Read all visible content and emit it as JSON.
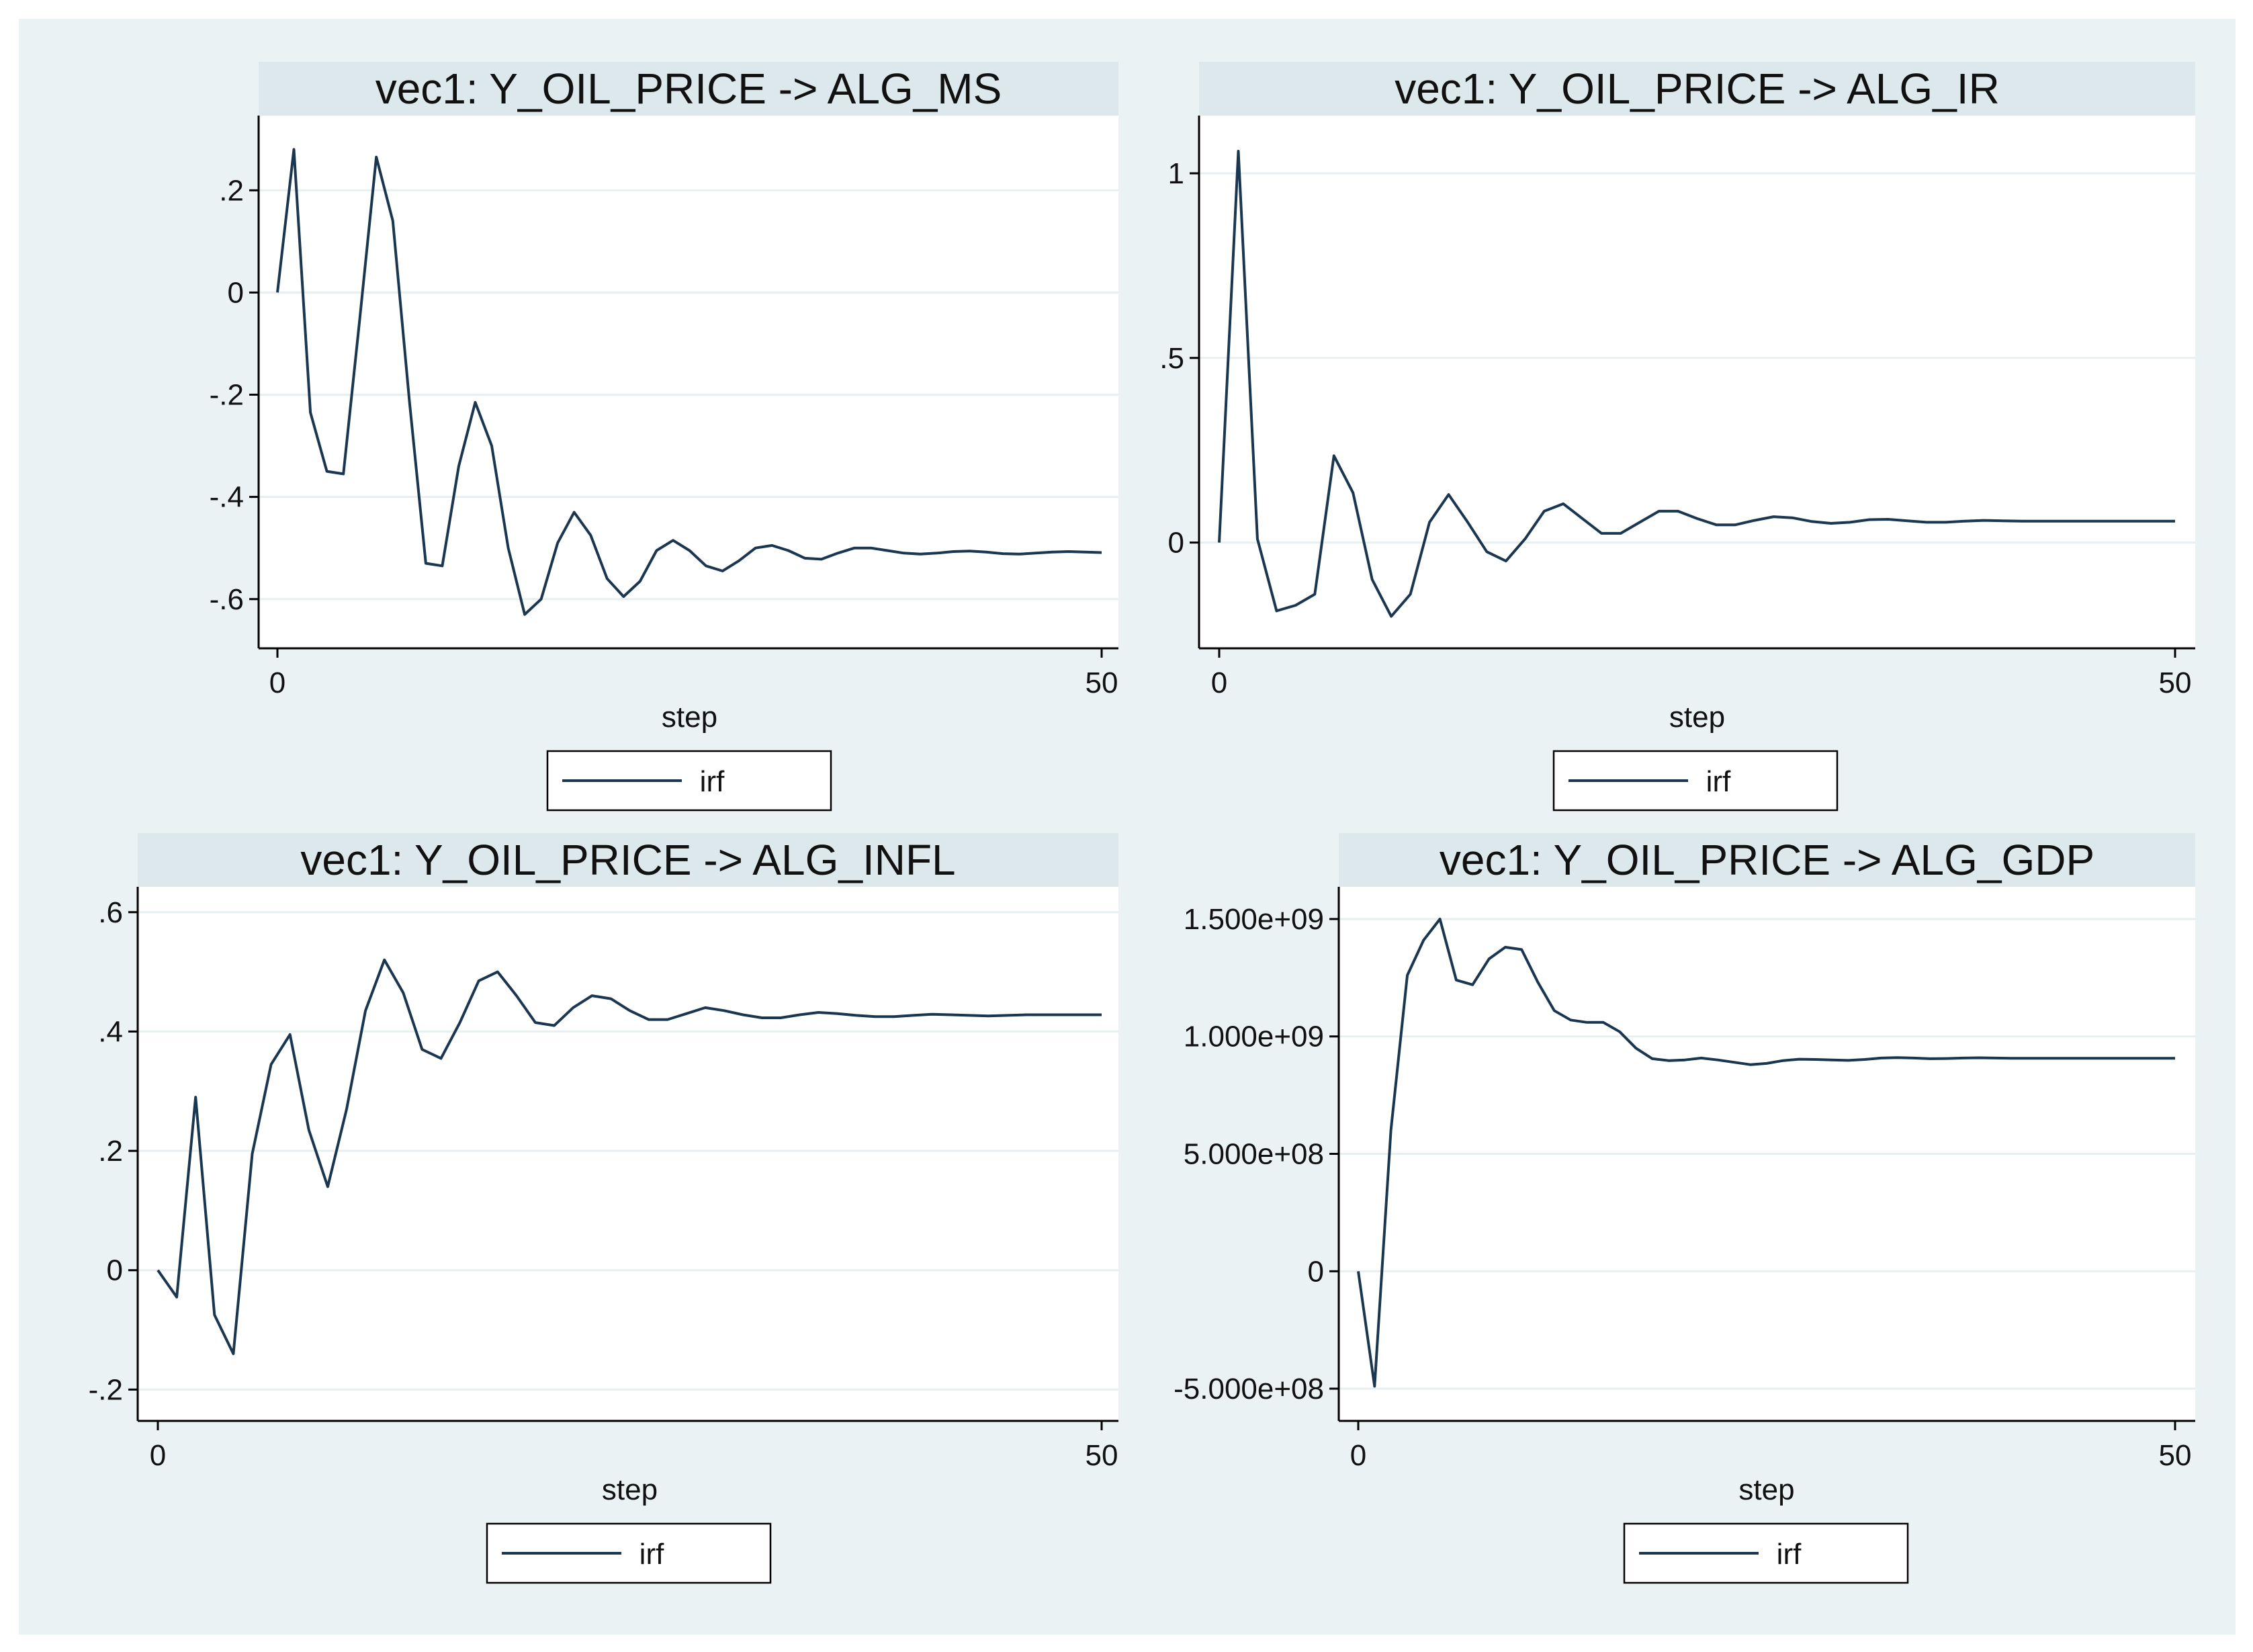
{
  "colors": {
    "outer_background": "#eaf2f3",
    "title_band": "#dde8ec",
    "plot_background": "#ffffff",
    "grid": "#e8eff1",
    "axis": "#000000",
    "line": "#1a3650"
  },
  "chart_data": [
    {
      "type": "line",
      "title": "vec1: Y_OIL_PRICE -> ALG_MS",
      "xlabel": "step",
      "ylabel": "",
      "xlim": [
        0,
        50
      ],
      "ylim": [
        -0.67,
        0.32
      ],
      "xticks": [
        0,
        50
      ],
      "xtick_labels": [
        "0",
        "50"
      ],
      "yticks": [
        0.2,
        0,
        -0.2,
        -0.4,
        -0.6
      ],
      "ytick_labels": [
        ".2",
        "0",
        "-.2",
        "-.4",
        "-.6"
      ],
      "grid": true,
      "legend": [
        "irf"
      ],
      "legend_position": "bottom",
      "series": [
        {
          "name": "irf",
          "x": [
            0,
            1,
            2,
            3,
            4,
            5,
            6,
            7,
            8,
            9,
            10,
            11,
            12,
            13,
            14,
            15,
            16,
            17,
            18,
            19,
            20,
            21,
            22,
            23,
            24,
            25,
            26,
            27,
            28,
            29,
            30,
            31,
            32,
            33,
            34,
            35,
            36,
            37,
            38,
            39,
            40,
            41,
            42,
            43,
            44,
            45,
            46,
            47,
            48,
            49,
            50
          ],
          "y": [
            0,
            0.28,
            -0.235,
            -0.35,
            -0.355,
            -0.05,
            0.265,
            0.14,
            -0.21,
            -0.53,
            -0.535,
            -0.34,
            -0.215,
            -0.3,
            -0.5,
            -0.63,
            -0.6,
            -0.49,
            -0.43,
            -0.475,
            -0.56,
            -0.595,
            -0.565,
            -0.505,
            -0.485,
            -0.505,
            -0.535,
            -0.545,
            -0.525,
            -0.5,
            -0.495,
            -0.505,
            -0.52,
            -0.522,
            -0.51,
            -0.5,
            -0.5,
            -0.505,
            -0.51,
            -0.512,
            -0.51,
            -0.507,
            -0.506,
            -0.508,
            -0.511,
            -0.512,
            -0.51,
            -0.508,
            -0.507,
            -0.508,
            -0.509
          ]
        }
      ]
    },
    {
      "type": "line",
      "title": "vec1: Y_OIL_PRICE -> ALG_IR",
      "xlabel": "step",
      "ylabel": "",
      "xlim": [
        0,
        50
      ],
      "ylim": [
        -0.25,
        1.12
      ],
      "xticks": [
        0,
        50
      ],
      "xtick_labels": [
        "0",
        "50"
      ],
      "yticks": [
        1,
        0.5,
        0
      ],
      "ytick_labels": [
        "1",
        ".5",
        "0"
      ],
      "grid": true,
      "legend": [
        "irf"
      ],
      "legend_position": "bottom",
      "series": [
        {
          "name": "irf",
          "x": [
            0,
            1,
            2,
            3,
            4,
            5,
            6,
            7,
            8,
            9,
            10,
            11,
            12,
            13,
            14,
            15,
            16,
            17,
            18,
            19,
            20,
            21,
            22,
            23,
            24,
            25,
            26,
            27,
            28,
            29,
            30,
            31,
            32,
            33,
            34,
            35,
            36,
            37,
            38,
            39,
            40,
            41,
            42,
            43,
            44,
            45,
            46,
            47,
            48,
            49,
            50
          ],
          "y": [
            0,
            1.06,
            0.01,
            -0.185,
            -0.17,
            -0.14,
            0.235,
            0.135,
            -0.1,
            -0.2,
            -0.14,
            0.055,
            0.13,
            0.055,
            -0.025,
            -0.05,
            0.01,
            0.085,
            0.105,
            0.065,
            0.025,
            0.025,
            0.055,
            0.085,
            0.085,
            0.065,
            0.048,
            0.048,
            0.06,
            0.07,
            0.067,
            0.057,
            0.052,
            0.055,
            0.062,
            0.063,
            0.059,
            0.055,
            0.055,
            0.058,
            0.06,
            0.059,
            0.058,
            0.058,
            0.058,
            0.058,
            0.058,
            0.058,
            0.058,
            0.058,
            0.058
          ]
        }
      ]
    },
    {
      "type": "line",
      "title": "vec1: Y_OIL_PRICE -> ALG_INFL",
      "xlabel": "step",
      "ylabel": "",
      "xlim": [
        0,
        50
      ],
      "ylim": [
        -0.23,
        0.62
      ],
      "xticks": [
        0,
        50
      ],
      "xtick_labels": [
        "0",
        "50"
      ],
      "yticks": [
        0.6,
        0.4,
        0.2,
        0,
        -0.2
      ],
      "ytick_labels": [
        ".6",
        ".4",
        ".2",
        "0",
        "-.2"
      ],
      "grid": true,
      "legend": [
        "irf"
      ],
      "legend_position": "bottom",
      "series": [
        {
          "name": "irf",
          "x": [
            0,
            1,
            2,
            3,
            4,
            5,
            6,
            7,
            8,
            9,
            10,
            11,
            12,
            13,
            14,
            15,
            16,
            17,
            18,
            19,
            20,
            21,
            22,
            23,
            24,
            25,
            26,
            27,
            28,
            29,
            30,
            31,
            32,
            33,
            34,
            35,
            36,
            37,
            38,
            39,
            40,
            41,
            42,
            43,
            44,
            45,
            46,
            47,
            48,
            49,
            50
          ],
          "y": [
            0,
            -0.045,
            0.29,
            -0.075,
            -0.14,
            0.195,
            0.345,
            0.395,
            0.235,
            0.14,
            0.27,
            0.435,
            0.52,
            0.465,
            0.37,
            0.355,
            0.415,
            0.485,
            0.5,
            0.46,
            0.415,
            0.41,
            0.44,
            0.46,
            0.455,
            0.435,
            0.42,
            0.42,
            0.43,
            0.44,
            0.435,
            0.428,
            0.423,
            0.423,
            0.428,
            0.432,
            0.43,
            0.427,
            0.425,
            0.425,
            0.427,
            0.429,
            0.428,
            0.427,
            0.426,
            0.427,
            0.428,
            0.428,
            0.428,
            0.428,
            0.428
          ]
        }
      ]
    },
    {
      "type": "line",
      "title": "vec1: Y_OIL_PRICE -> ALG_GDP",
      "xlabel": "step",
      "ylabel": "",
      "xlim": [
        0,
        50
      ],
      "ylim": [
        -580000000,
        1580000000
      ],
      "xticks": [
        0,
        50
      ],
      "xtick_labels": [
        "0",
        "50"
      ],
      "yticks": [
        1500000000,
        1000000000,
        500000000,
        0,
        -500000000
      ],
      "ytick_labels": [
        "1.500e+09",
        "1.000e+09",
        "5.000e+08",
        "0",
        "-5.000e+08"
      ],
      "grid": true,
      "legend": [
        "irf"
      ],
      "legend_position": "bottom",
      "series": [
        {
          "name": "irf",
          "x": [
            0,
            1,
            2,
            3,
            4,
            5,
            6,
            7,
            8,
            9,
            10,
            11,
            12,
            13,
            14,
            15,
            16,
            17,
            18,
            19,
            20,
            21,
            22,
            23,
            24,
            25,
            26,
            27,
            28,
            29,
            30,
            31,
            32,
            33,
            34,
            35,
            36,
            37,
            38,
            39,
            40,
            41,
            42,
            43,
            44,
            45,
            46,
            47,
            48,
            49,
            50
          ],
          "y": [
            0,
            -490000000,
            600000000,
            1260000000,
            1410000000,
            1500000000,
            1240000000,
            1220000000,
            1330000000,
            1380000000,
            1370000000,
            1230000000,
            1110000000,
            1070000000,
            1060000000,
            1060000000,
            1020000000,
            950000000,
            905000000,
            897000000,
            900000000,
            908000000,
            900000000,
            890000000,
            880000000,
            885000000,
            897000000,
            903000000,
            902000000,
            900000000,
            898000000,
            902000000,
            908000000,
            910000000,
            908000000,
            905000000,
            906000000,
            908000000,
            909000000,
            908000000,
            907000000,
            907000000,
            907000000,
            907000000,
            907000000,
            907000000,
            907000000,
            907000000,
            907000000,
            907000000,
            907000000
          ]
        }
      ]
    }
  ]
}
